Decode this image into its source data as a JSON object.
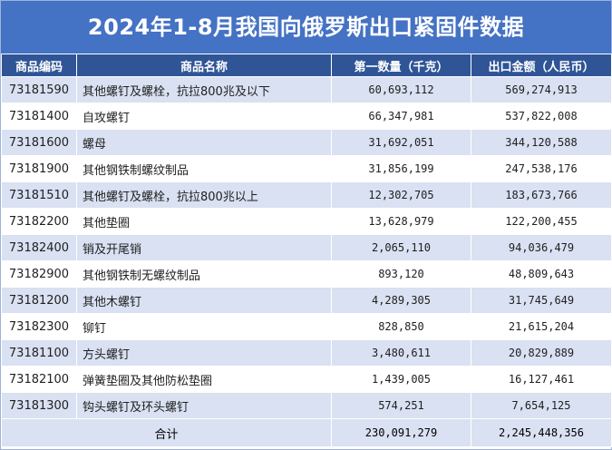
{
  "title": "2024年1-8月我国向俄罗斯出口紧固件数据",
  "headers": {
    "code": "商品编码",
    "name": "商品名称",
    "qty": "第一数量（千克）",
    "amount": "出口金额（人民币）"
  },
  "rows": [
    {
      "code": "73181590",
      "name": "其他螺钉及螺栓，抗拉800兆及以下",
      "qty": "60,693,112",
      "amount": "569,274,913"
    },
    {
      "code": "73181400",
      "name": "自攻螺钉",
      "qty": "66,347,981",
      "amount": "537,822,008"
    },
    {
      "code": "73181600",
      "name": "螺母",
      "qty": "31,692,051",
      "amount": "344,120,588"
    },
    {
      "code": "73181900",
      "name": "其他钢铁制螺纹制品",
      "qty": "31,856,199",
      "amount": "247,538,176"
    },
    {
      "code": "73181510",
      "name": "其他螺钉及螺栓，抗拉800兆以上",
      "qty": "12,302,705",
      "amount": "183,673,766"
    },
    {
      "code": "73182200",
      "name": "其他垫圈",
      "qty": "13,628,979",
      "amount": "122,200,455"
    },
    {
      "code": "73182400",
      "name": "销及开尾销",
      "qty": "2,065,110",
      "amount": "94,036,479"
    },
    {
      "code": "73182900",
      "name": "其他钢铁制无螺纹制品",
      "qty": "893,120",
      "amount": "48,809,643"
    },
    {
      "code": "73181200",
      "name": "其他木螺钉",
      "qty": "4,289,305",
      "amount": "31,745,649"
    },
    {
      "code": "73182300",
      "name": "铆钉",
      "qty": "828,850",
      "amount": "21,615,204"
    },
    {
      "code": "73181100",
      "name": "方头螺钉",
      "qty": "3,480,611",
      "amount": "20,829,889"
    },
    {
      "code": "73182100",
      "name": "弹簧垫圈及其他防松垫圈",
      "qty": "1,439,005",
      "amount": "16,127,461"
    },
    {
      "code": "73181300",
      "name": "钩头螺钉及环头螺钉",
      "qty": "574,251",
      "amount": "7,654,125"
    }
  ],
  "total": {
    "label": "合计",
    "qty": "230,091,279",
    "amount": "2,245,448,356"
  }
}
